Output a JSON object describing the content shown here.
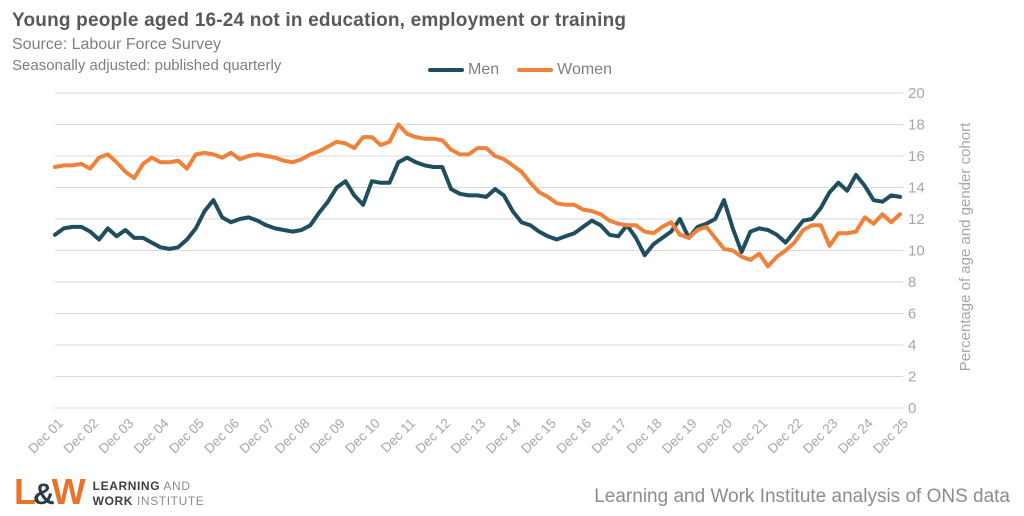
{
  "header": {
    "title": "Young people aged 16-24 not in education, employment or training",
    "source": "Source: Labour Force Survey",
    "note": "Seasonally adjusted: published quarterly"
  },
  "legend": [
    {
      "label": "Men",
      "color": "#1f4e5c"
    },
    {
      "label": "Women",
      "color": "#ef8239"
    }
  ],
  "chart_data": {
    "type": "line",
    "title": "Young people aged 16-24 not in education, employment or training",
    "xlabel": "",
    "ylabel": "Percentage of age and gender cohort",
    "ylim": [
      0,
      20
    ],
    "ytick_step": 2,
    "grid": true,
    "legend_position": "top",
    "points_per_tick": 4,
    "x_tick_labels": [
      "Dec 01",
      "Dec 02",
      "Dec 03",
      "Dec 04",
      "Dec 05",
      "Dec 06",
      "Dec 07",
      "Dec 08",
      "Dec 09",
      "Dec 10",
      "Dec 11",
      "Dec 12",
      "Dec 13",
      "Dec 14",
      "Dec 15",
      "Dec 16",
      "Dec 17",
      "Dec 18",
      "Dec 19",
      "Dec 20",
      "Dec 21",
      "Dec 22",
      "Dec 23",
      "Dec 24",
      "Dec 25"
    ],
    "series": [
      {
        "name": "Men",
        "color": "#1f4e5c",
        "values": [
          11.0,
          11.4,
          11.5,
          11.5,
          11.2,
          10.7,
          11.4,
          10.9,
          11.3,
          10.8,
          10.8,
          10.5,
          10.2,
          10.1,
          10.2,
          10.7,
          11.4,
          12.5,
          13.2,
          12.1,
          11.8,
          12.0,
          12.1,
          11.9,
          11.6,
          11.4,
          11.3,
          11.2,
          11.3,
          11.6,
          12.4,
          13.1,
          14.0,
          14.4,
          13.5,
          12.9,
          14.4,
          14.3,
          14.3,
          15.6,
          15.9,
          15.6,
          15.4,
          15.3,
          15.3,
          13.9,
          13.6,
          13.5,
          13.5,
          13.4,
          13.9,
          13.5,
          12.5,
          11.8,
          11.6,
          11.2,
          10.9,
          10.7,
          10.9,
          11.1,
          11.5,
          11.9,
          11.6,
          11.0,
          10.9,
          11.6,
          10.8,
          9.7,
          10.4,
          10.8,
          11.2,
          12.0,
          10.8,
          11.5,
          11.7,
          12.0,
          13.2,
          11.4,
          9.9,
          11.2,
          11.4,
          11.3,
          11.0,
          10.5,
          11.2,
          11.9,
          12.0,
          12.7,
          13.7,
          14.3,
          13.8,
          14.8,
          14.1,
          13.2,
          13.1,
          13.5,
          13.4
        ]
      },
      {
        "name": "Women",
        "color": "#ef8239",
        "values": [
          15.3,
          15.4,
          15.4,
          15.5,
          15.2,
          15.9,
          16.1,
          15.6,
          15.0,
          14.6,
          15.5,
          15.9,
          15.6,
          15.6,
          15.7,
          15.2,
          16.1,
          16.2,
          16.1,
          15.9,
          16.2,
          15.8,
          16.0,
          16.1,
          16.0,
          15.9,
          15.7,
          15.6,
          15.8,
          16.1,
          16.3,
          16.6,
          16.9,
          16.8,
          16.5,
          17.2,
          17.2,
          16.7,
          16.9,
          18.0,
          17.4,
          17.2,
          17.1,
          17.1,
          17.0,
          16.4,
          16.1,
          16.1,
          16.5,
          16.5,
          16.0,
          15.8,
          15.4,
          15.0,
          14.3,
          13.7,
          13.4,
          13.0,
          12.9,
          12.9,
          12.6,
          12.5,
          12.3,
          11.9,
          11.7,
          11.6,
          11.6,
          11.2,
          11.1,
          11.5,
          11.8,
          11.0,
          10.8,
          11.3,
          11.5,
          10.8,
          10.1,
          10.0,
          9.6,
          9.4,
          9.8,
          9.0,
          9.6,
          10.0,
          10.5,
          11.3,
          11.6,
          11.6,
          10.3,
          11.1,
          11.1,
          11.2,
          12.1,
          11.7,
          12.3,
          11.8,
          12.3
        ]
      }
    ]
  },
  "footer": {
    "logo": {
      "l": "L",
      "amp": "&",
      "w": "W",
      "line1_bold": "LEARNING",
      "line1_rest": " AND",
      "line2_bold": "WORK",
      "line2_rest": " INSTITUTE"
    },
    "attribution": "Learning and Work Institute analysis of ONS data"
  },
  "colors": {
    "grid": "#d9d9d9",
    "axis_text": "#a6a6a6",
    "title_text": "#595959"
  }
}
